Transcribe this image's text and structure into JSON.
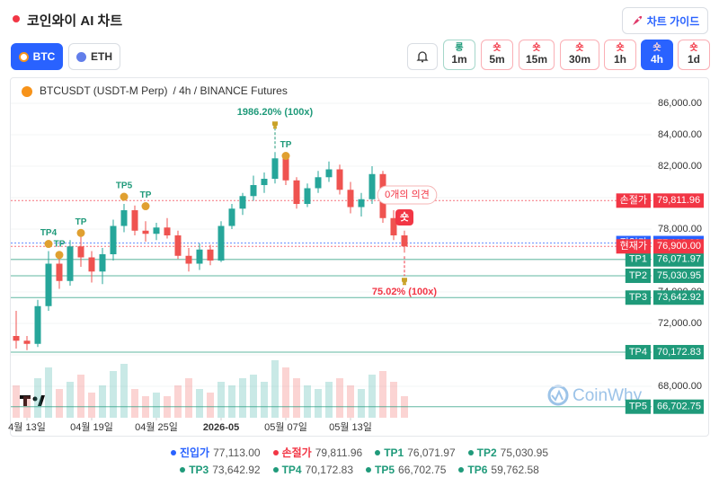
{
  "header": {
    "title": "코인와이 AI 차트",
    "guide_button": "차트 가이드"
  },
  "coins": [
    {
      "label": "BTC",
      "active": true,
      "color": "#f7931a"
    },
    {
      "label": "ETH",
      "active": false,
      "color": "#627eea"
    }
  ],
  "timeframes": [
    {
      "signal": "롱",
      "signal_color": "#1f9a7a",
      "label": "1m",
      "active": false
    },
    {
      "signal": "숏",
      "signal_color": "#f23645",
      "label": "5m",
      "active": false
    },
    {
      "signal": "숏",
      "signal_color": "#f23645",
      "label": "15m",
      "active": false
    },
    {
      "signal": "숏",
      "signal_color": "#f23645",
      "label": "30m",
      "active": false
    },
    {
      "signal": "숏",
      "signal_color": "#f23645",
      "label": "1h",
      "active": false
    },
    {
      "signal": "숏",
      "signal_color": "#f23645",
      "label": "4h",
      "active": true
    },
    {
      "signal": "숏",
      "signal_color": "#f23645",
      "label": "1d",
      "active": false
    }
  ],
  "chart_data": {
    "type": "candlestick",
    "title": "BTCUSDT (USDT-M Perp)",
    "subtitle": "/ 4h / BINANCE Futures",
    "watermark": "CoinWhy",
    "up_color": "#26a69a",
    "down_color": "#ef5350",
    "open": [
      71200,
      70900,
      70700,
      73100,
      75800,
      74700,
      76900,
      76200,
      75300,
      76400,
      78200,
      79200,
      77900,
      77700,
      78100,
      77600,
      76300,
      75800,
      76700,
      76000,
      78200,
      79300,
      80100,
      80800,
      81200,
      82500,
      81100,
      79600,
      80600,
      81300,
      81800,
      80500,
      79400,
      79900,
      81500,
      78700,
      77600
    ],
    "high": [
      72800,
      71200,
      73500,
      76600,
      76200,
      77300,
      77900,
      76600,
      76800,
      78600,
      79600,
      79500,
      78500,
      78400,
      78700,
      77900,
      76800,
      77100,
      77000,
      78500,
      79600,
      80300,
      81400,
      81600,
      82900,
      82700,
      81300,
      80900,
      81700,
      82300,
      82100,
      81000,
      80300,
      82000,
      81700,
      79200,
      77900
    ],
    "low": [
      70400,
      70300,
      70500,
      72800,
      74200,
      74400,
      75600,
      74600,
      74500,
      76000,
      77800,
      77600,
      77200,
      77300,
      77400,
      76100,
      75300,
      75400,
      75700,
      75900,
      78000,
      78900,
      79800,
      80300,
      80900,
      80800,
      79300,
      79400,
      80300,
      81000,
      80200,
      79000,
      78800,
      79600,
      78400,
      77300,
      76500
    ],
    "close": [
      70900,
      70700,
      73100,
      75800,
      74700,
      76900,
      76200,
      75300,
      76400,
      78200,
      79200,
      77900,
      77700,
      78100,
      77600,
      76300,
      75800,
      76700,
      76000,
      78200,
      79300,
      80100,
      80800,
      81200,
      82500,
      81100,
      79600,
      80600,
      81300,
      81800,
      80500,
      79400,
      79900,
      81500,
      78700,
      77600,
      76900
    ],
    "volume": [
      45,
      30,
      55,
      70,
      40,
      50,
      60,
      35,
      45,
      65,
      75,
      40,
      30,
      35,
      30,
      45,
      55,
      40,
      35,
      50,
      45,
      55,
      60,
      50,
      80,
      70,
      55,
      45,
      40,
      50,
      55,
      45,
      40,
      60,
      65,
      50,
      30
    ],
    "vlim": [
      0,
      100
    ],
    "xticks": [
      {
        "value": 1,
        "label": "4월 13일"
      },
      {
        "value": 7,
        "label": "04월 19일"
      },
      {
        "value": 13,
        "label": "04월 25일"
      },
      {
        "value": 19,
        "label": "2026-05"
      },
      {
        "value": 25,
        "label": "05월 07일"
      },
      {
        "value": 31,
        "label": "05월 13일"
      }
    ],
    "ylim": [
      66000,
      87430
    ],
    "yticks": [
      {
        "value": 68000,
        "label": "68,000.00"
      },
      {
        "value": 70000,
        "label": "70,000.00"
      },
      {
        "value": 72000,
        "label": "72,000.00"
      },
      {
        "value": 74000,
        "label": "74,000.00"
      },
      {
        "value": 76000,
        "label": "76,000.00"
      },
      {
        "value": 78000,
        "label": "78,000.00"
      },
      {
        "value": 80000,
        "label": "80,000.00"
      },
      {
        "value": 82000,
        "label": "82,000.00"
      },
      {
        "value": 84000,
        "label": "84,000.00"
      },
      {
        "value": 86000,
        "label": "86,000.00"
      }
    ],
    "current_price": {
      "name": "현재가",
      "value": 76900,
      "label": "76,900.00",
      "color": "#f23645"
    },
    "levels": [
      {
        "name": "진입가",
        "value": 77113,
        "label": "77,113.00",
        "color": "#2962ff"
      },
      {
        "name": "손절가",
        "value": 79811.96,
        "label": "79,811.96",
        "color": "#f23645"
      },
      {
        "name": "TP1",
        "value": 76071.97,
        "label": "76,071.97",
        "color": "#1f9a7a"
      },
      {
        "name": "TP2",
        "value": 75030.95,
        "label": "75,030.95",
        "color": "#1f9a7a"
      },
      {
        "name": "TP3",
        "value": 73642.92,
        "label": "73,642.92",
        "color": "#1f9a7a"
      },
      {
        "name": "TP4",
        "value": 70172.83,
        "label": "70,172.83",
        "color": "#1f9a7a"
      },
      {
        "name": "TP5",
        "value": 66702.75,
        "label": "66,702.75",
        "color": "#1f9a7a"
      },
      {
        "name": "TP6",
        "value": 59762.58,
        "label": "59,762.58",
        "color": "#1f9a7a"
      }
    ],
    "annotations": [
      {
        "text": "TP4",
        "kind": "tp",
        "index": 3,
        "price": 76600,
        "color": "#1f9a7a"
      },
      {
        "text": "TP",
        "kind": "tp",
        "index": 4,
        "price": 75900,
        "color": "#1f9a7a"
      },
      {
        "text": "TP",
        "kind": "tp",
        "index": 6,
        "price": 77300,
        "color": "#1f9a7a"
      },
      {
        "text": "TP5",
        "kind": "tp",
        "index": 10,
        "price": 79600,
        "color": "#1f9a7a"
      },
      {
        "text": "TP",
        "kind": "tp",
        "index": 12,
        "price": 79000,
        "color": "#1f9a7a"
      },
      {
        "text": "TP",
        "kind": "tp",
        "index": 25,
        "price": 82200,
        "color": "#1f9a7a"
      },
      {
        "text": "1986.20% (100x)",
        "kind": "profit",
        "index": 24,
        "price": 82900,
        "color": "#1f9a7a"
      },
      {
        "text": "75.02% (100x)",
        "kind": "loss",
        "index": 36,
        "price": 76500,
        "color": "#f23645"
      }
    ],
    "comment": "0개의 의견",
    "signal_badge": {
      "text": "숏",
      "index": 36,
      "color": "#f23645"
    }
  }
}
